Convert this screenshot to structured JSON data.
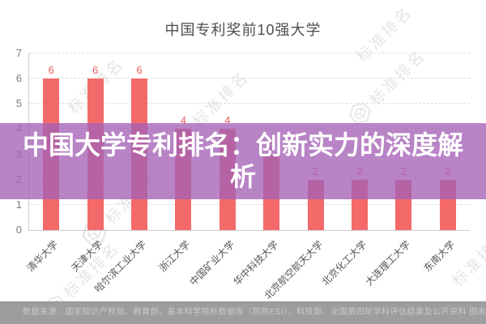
{
  "title": "中国专利奖前10强大学",
  "overlay": {
    "headline": "中国大学专利排名：创新实力的深度解析"
  },
  "footer": {
    "source_text": "数据来源：国家知识产权局、教育部、基本科学指标数据库（简称ESI）、科技部、全国第四轮学科评估结果及公开资料  图表制作：张亚仙"
  },
  "watermark": {
    "text": "标准排名"
  },
  "chart_data": {
    "type": "bar",
    "title": "中国专利奖前10强大学",
    "categories": [
      "清华大学",
      "天津大学",
      "哈尔滨工业大学",
      "浙江大学",
      "中国矿业大学",
      "华中科技大学",
      "北京航空航天大学",
      "北京化工大学",
      "大连理工大学",
      "东南大学"
    ],
    "values": [
      6,
      6,
      6,
      4,
      4,
      3,
      2,
      2,
      2,
      2
    ],
    "xlabel": "",
    "ylabel": "",
    "ylim": [
      0,
      7
    ],
    "yticks": [
      0,
      1,
      2,
      3,
      4,
      5,
      6,
      7
    ],
    "grid": true,
    "legend": false,
    "bar_color": "#f4696a",
    "value_label_color": "#ee5c60"
  },
  "colors": {
    "overlay_band": "rgba(164,97,182,0.78)",
    "footer_bg": "#9d9d9d",
    "footer_text": "#c9c9c9",
    "title_text": "#4d4d4d",
    "axis_text": "#7d7d7d",
    "watermark": "#e4e4e4"
  }
}
